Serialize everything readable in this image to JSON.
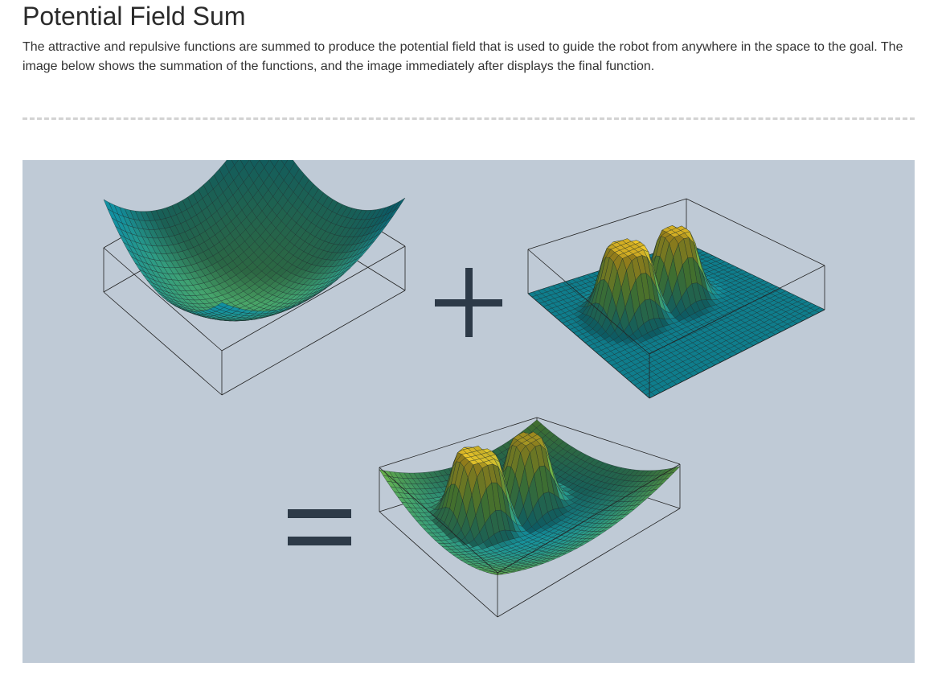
{
  "page": {
    "title": "Potential Field Sum",
    "intro": "The attractive and repulsive functions are summed to produce the potential field that is used to guide the robot from anywhere in the space to the goal. The image below shows the summation of the functions, and the image immediately after displays the final function."
  },
  "figure": {
    "background_color": "#bfcad6",
    "plus_symbol": "+",
    "equals_symbol": "=",
    "symbol_color": "#2d3a48",
    "surfaces": [
      {
        "name": "attractive-potential",
        "kind": "bowl"
      },
      {
        "name": "repulsive-potential",
        "kind": "obstacles"
      },
      {
        "name": "total-potential",
        "kind": "sum"
      }
    ],
    "colors": {
      "low": "#0f7d8c",
      "mid": "#5a9a40",
      "high": "#e0b020"
    }
  }
}
